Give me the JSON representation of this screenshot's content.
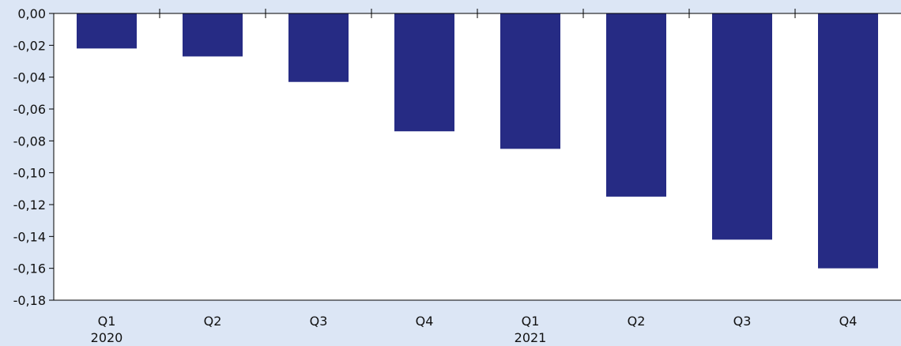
{
  "chart_data": {
    "type": "bar",
    "categories": [
      "Q1",
      "Q2",
      "Q3",
      "Q4",
      "Q1",
      "Q2",
      "Q3",
      "Q4"
    ],
    "year_labels": [
      "2020",
      "",
      "",
      "",
      "2021",
      "",
      "",
      ""
    ],
    "values": [
      -0.022,
      -0.027,
      -0.043,
      -0.074,
      -0.085,
      -0.115,
      -0.142,
      -0.16
    ],
    "ylim": [
      -0.18,
      0.0
    ],
    "y_ticks": [
      "0,00",
      "-0,02",
      "-0,04",
      "-0,06",
      "-0,08",
      "-0,10",
      "-0,12",
      "-0,14",
      "-0,16",
      "-0,18"
    ],
    "title": "",
    "xlabel": "",
    "ylabel": "",
    "grid": false,
    "legend": "none",
    "bar_color": "#262b84",
    "background_color": "#dce6f5"
  }
}
